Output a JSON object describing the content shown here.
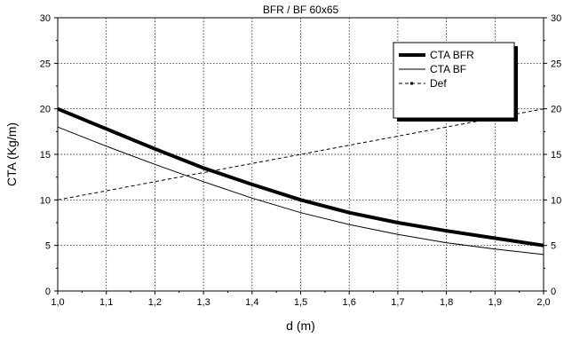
{
  "chart_data": {
    "type": "line",
    "title": "BFR / BF 60x65",
    "xlabel": "d (m)",
    "ylabel": "CTA (Kg/m)",
    "xlim": [
      1.0,
      2.0
    ],
    "ylim": [
      0,
      30
    ],
    "x_ticks": [
      "1,0",
      "1,1",
      "1,2",
      "1,3",
      "1,4",
      "1,5",
      "1,6",
      "1,7",
      "1,8",
      "1,9",
      "2,0"
    ],
    "y_ticks": [
      "0",
      "5",
      "10",
      "15",
      "20",
      "25",
      "30"
    ],
    "grid": true,
    "legend_position": "top-right",
    "x": [
      1.0,
      1.1,
      1.2,
      1.3,
      1.4,
      1.5,
      1.6,
      1.7,
      1.8,
      1.9,
      2.0
    ],
    "series": [
      {
        "name": "CTA BFR",
        "style": "thick-solid",
        "color": "#000000",
        "values": [
          20.0,
          17.8,
          15.6,
          13.5,
          11.7,
          10.0,
          8.6,
          7.5,
          6.6,
          5.8,
          5.0
        ]
      },
      {
        "name": "CTA BF",
        "style": "thin-solid",
        "color": "#000000",
        "values": [
          18.0,
          15.9,
          13.9,
          12.0,
          10.2,
          8.6,
          7.3,
          6.2,
          5.3,
          4.6,
          4.0
        ]
      },
      {
        "name": "Def",
        "style": "dashed",
        "color": "#000000",
        "values": [
          10.0,
          11.0,
          12.0,
          13.0,
          14.0,
          15.0,
          16.0,
          17.0,
          18.0,
          19.0,
          20.0
        ]
      }
    ]
  }
}
